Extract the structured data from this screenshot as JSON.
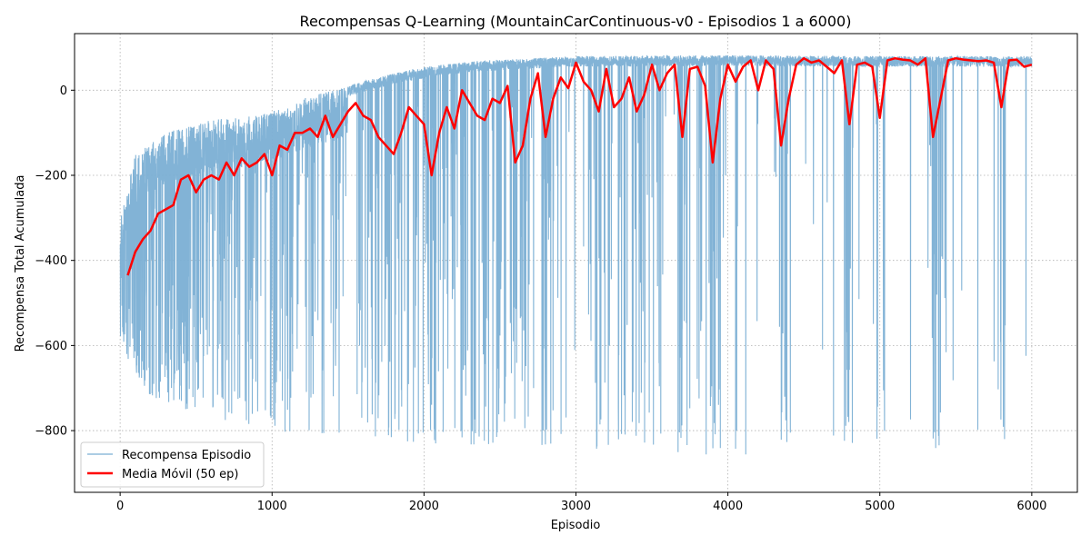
{
  "chart_data": {
    "type": "line",
    "title": "Recompensas Q-Learning (MountainCarContinuous-v0 - Episodios 1 a 6000)",
    "xlabel": "Episodio",
    "ylabel": "Recompensa Total Acumulada",
    "xlim": [
      -300,
      6300
    ],
    "ylim": [
      -945,
      133
    ],
    "xticks": [
      0,
      1000,
      2000,
      3000,
      4000,
      5000,
      6000
    ],
    "yticks": [
      -800,
      -600,
      -400,
      -200,
      0
    ],
    "grid": true,
    "legend_position": "lower-left",
    "series": [
      {
        "name": "Recompensa Episodio",
        "color": "#7bafd4",
        "episodes": 6000,
        "envelope_upper": [
          [
            1,
            -300
          ],
          [
            100,
            -150
          ],
          [
            300,
            -100
          ],
          [
            600,
            -70
          ],
          [
            900,
            -60
          ],
          [
            1200,
            -20
          ],
          [
            1500,
            10
          ],
          [
            1800,
            40
          ],
          [
            2100,
            60
          ],
          [
            2400,
            70
          ],
          [
            2700,
            75
          ],
          [
            3000,
            80
          ],
          [
            4000,
            82
          ],
          [
            5000,
            80
          ],
          [
            6000,
            80
          ]
        ],
        "typical_dip_lower": [
          [
            1,
            -600
          ],
          [
            200,
            -720
          ],
          [
            500,
            -760
          ],
          [
            1000,
            -800
          ],
          [
            2000,
            -830
          ],
          [
            3000,
            -840
          ],
          [
            4000,
            -860
          ],
          [
            5000,
            -830
          ],
          [
            6000,
            -860
          ]
        ]
      },
      {
        "name": "Media Móvil (50 ep)",
        "color": "#ff0000",
        "window": 50,
        "x": [
          50,
          100,
          150,
          200,
          250,
          300,
          350,
          400,
          450,
          500,
          550,
          600,
          650,
          700,
          750,
          800,
          850,
          900,
          950,
          1000,
          1050,
          1100,
          1150,
          1200,
          1250,
          1300,
          1350,
          1400,
          1450,
          1500,
          1550,
          1600,
          1650,
          1700,
          1750,
          1800,
          1850,
          1900,
          1950,
          2000,
          2050,
          2100,
          2150,
          2200,
          2250,
          2300,
          2350,
          2400,
          2450,
          2500,
          2550,
          2600,
          2650,
          2700,
          2750,
          2800,
          2850,
          2900,
          2950,
          3000,
          3050,
          3100,
          3150,
          3200,
          3250,
          3300,
          3350,
          3400,
          3450,
          3500,
          3550,
          3600,
          3650,
          3700,
          3750,
          3800,
          3850,
          3900,
          3950,
          4000,
          4050,
          4100,
          4150,
          4200,
          4250,
          4300,
          4350,
          4400,
          4450,
          4500,
          4550,
          4600,
          4650,
          4700,
          4750,
          4800,
          4850,
          4900,
          4950,
          5000,
          5050,
          5100,
          5150,
          5200,
          5250,
          5300,
          5350,
          5400,
          5450,
          5500,
          5550,
          5600,
          5650,
          5700,
          5750,
          5800,
          5850,
          5900,
          5950,
          6000
        ],
        "y": [
          -435,
          -380,
          -350,
          -330,
          -290,
          -280,
          -270,
          -210,
          -200,
          -240,
          -210,
          -200,
          -210,
          -170,
          -200,
          -160,
          -180,
          -170,
          -150,
          -200,
          -130,
          -140,
          -100,
          -100,
          -90,
          -110,
          -60,
          -110,
          -80,
          -50,
          -30,
          -60,
          -70,
          -110,
          -130,
          -150,
          -100,
          -40,
          -60,
          -80,
          -200,
          -100,
          -40,
          -90,
          0,
          -30,
          -60,
          -70,
          -20,
          -30,
          10,
          -170,
          -130,
          -20,
          40,
          -110,
          -20,
          30,
          5,
          65,
          20,
          0,
          -50,
          50,
          -40,
          -20,
          30,
          -50,
          -10,
          60,
          0,
          40,
          60,
          -110,
          50,
          55,
          10,
          -170,
          -20,
          60,
          20,
          55,
          70,
          0,
          70,
          50,
          -130,
          -20,
          60,
          75,
          65,
          70,
          55,
          40,
          70,
          -80,
          60,
          65,
          55,
          -65,
          70,
          75,
          72,
          70,
          60,
          75,
          -110,
          -20,
          70,
          75,
          72,
          70,
          68,
          70,
          65,
          -40,
          70,
          72,
          55,
          60
        ]
      }
    ]
  }
}
